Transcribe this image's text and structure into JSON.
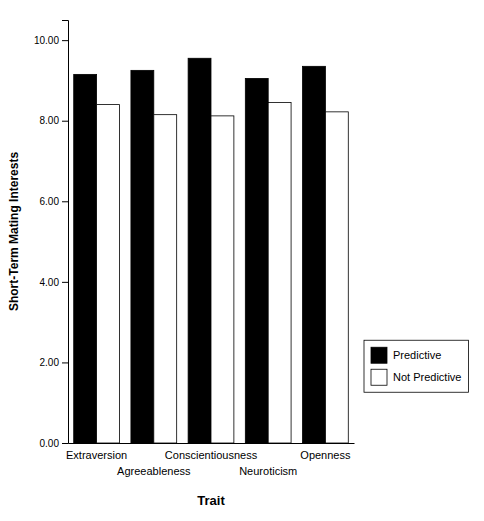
{
  "chart_data": {
    "type": "bar",
    "categories": [
      "Extraversion",
      "Agreeableness",
      "Conscientiousness",
      "Neuroticism",
      "Openness"
    ],
    "series": [
      {
        "name": "Predictive",
        "color": "#000000",
        "values": [
          9.15,
          9.25,
          9.55,
          9.05,
          9.35
        ]
      },
      {
        "name": "Not Predictive",
        "color": "#ffffff",
        "values": [
          8.4,
          8.15,
          8.12,
          8.45,
          8.22
        ]
      }
    ],
    "xlabel": "Trait",
    "ylabel": "Short-Term Mating Interests",
    "ylim": [
      0.0,
      10.5
    ],
    "yticks": [
      {
        "value": 0,
        "label": "0.00"
      },
      {
        "value": 2,
        "label": "2.00"
      },
      {
        "value": 4,
        "label": "4.00"
      },
      {
        "value": 6,
        "label": "6.00"
      },
      {
        "value": 8,
        "label": "8.00"
      },
      {
        "value": 10,
        "label": "10.00"
      }
    ],
    "legend": "lower right"
  }
}
